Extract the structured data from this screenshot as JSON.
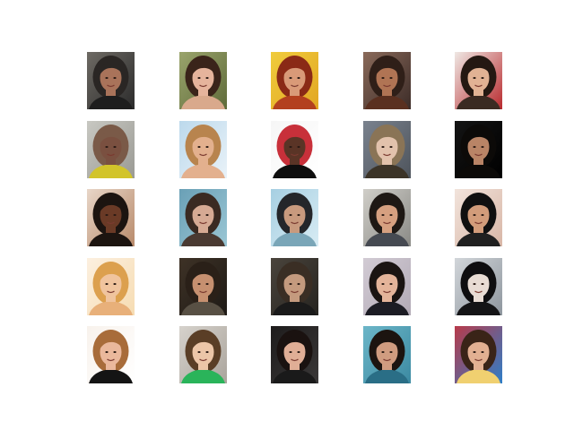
{
  "figure": {
    "background": "#ffffff",
    "rows": 5,
    "cols": 5
  },
  "portraits": [
    {
      "bg": "#6e6a64",
      "bg2": "#2b2b2b",
      "hair": "#2a2624",
      "skin": "#a9735a",
      "shirt": "#1e1e1e"
    },
    {
      "bg": "#9aa46c",
      "bg2": "#5f6b3a",
      "hair": "#3a241a",
      "skin": "#e6b49c",
      "shirt": "#d9a98c"
    },
    {
      "bg": "#f0cc3c",
      "bg2": "#e2a623",
      "hair": "#8a2a16",
      "skin": "#d99a78",
      "shirt": "#b3401f"
    },
    {
      "bg": "#8a6a5a",
      "bg2": "#3c2c28",
      "hair": "#2f1f18",
      "skin": "#b07454",
      "shirt": "#5a3020"
    },
    {
      "bg": "#efe8e4",
      "bg2": "#b82a2e",
      "hair": "#241812",
      "skin": "#e1b294",
      "shirt": "#3a2a22"
    },
    {
      "bg": "#c8c8c2",
      "bg2": "#9a9a94",
      "hair": "#7a5a48",
      "skin": "#7a5040",
      "shirt": "#d2c42a"
    },
    {
      "bg": "#bcd9ec",
      "bg2": "#e9f2f8",
      "hair": "#b8844e",
      "skin": "#e3b08e",
      "shirt": "#e3b08e"
    },
    {
      "bg": "#f6f6f6",
      "bg2": "#ffffff",
      "hair": "#c8303a",
      "skin": "#5a3426",
      "shirt": "#0e0e0e"
    },
    {
      "bg": "#7a828e",
      "bg2": "#4e545c",
      "hair": "#8a7456",
      "skin": "#e2c2ac",
      "shirt": "#3c3428"
    },
    {
      "bg": "#141414",
      "bg2": "#000000",
      "hair": "#0c0a08",
      "skin": "#b98466",
      "shirt": "#0c0a08"
    },
    {
      "bg": "#e8d6c8",
      "bg2": "#b88a6a",
      "hair": "#1c1410",
      "skin": "#6a3a26",
      "shirt": "#1c1410"
    },
    {
      "bg": "#6aa0b6",
      "bg2": "#9ac6d4",
      "hair": "#3a2a22",
      "skin": "#d6aa94",
      "shirt": "#4a3a32"
    },
    {
      "bg": "#a6cfe2",
      "bg2": "#d8ecf4",
      "hair": "#24262a",
      "skin": "#c89a7e",
      "shirt": "#7aa6b8"
    },
    {
      "bg": "#d0cec8",
      "bg2": "#8a8a86",
      "hair": "#1e1814",
      "skin": "#d6a080",
      "shirt": "#464a52"
    },
    {
      "bg": "#f2e4dc",
      "bg2": "#d8b6a6",
      "hair": "#101010",
      "skin": "#d29c7a",
      "shirt": "#202020"
    },
    {
      "bg": "#fcf0e0",
      "bg2": "#f6dcb2",
      "hair": "#dca04e",
      "skin": "#f0c49e",
      "shirt": "#e8b07a"
    },
    {
      "bg": "#3e3226",
      "bg2": "#1e1a16",
      "hair": "#2a2018",
      "skin": "#c69070",
      "shirt": "#585044"
    },
    {
      "bg": "#4a443c",
      "bg2": "#262420",
      "hair": "#3a2e24",
      "skin": "#c49a7e",
      "shirt": "#1a1a1a"
    },
    {
      "bg": "#d2cbd4",
      "bg2": "#b2aab6",
      "hair": "#1a1412",
      "skin": "#e4b49a",
      "shirt": "#1c1c24"
    },
    {
      "bg": "#d2d6da",
      "bg2": "#8e969e",
      "hair": "#0e0e10",
      "skin": "#e8dcd4",
      "shirt": "#141416"
    },
    {
      "bg": "#f8f2ec",
      "bg2": "#ffffff",
      "hair": "#a86c3a",
      "skin": "#eab89c",
      "shirt": "#141414"
    },
    {
      "bg": "#d6d2cc",
      "bg2": "#aaa49c",
      "hair": "#5a3e26",
      "skin": "#ecc6a8",
      "shirt": "#2ab45a"
    },
    {
      "bg": "#1e1c1c",
      "bg2": "#3a3838",
      "hair": "#1a1210",
      "skin": "#e0ae96",
      "shirt": "#1a1a1a"
    },
    {
      "bg": "#6cb6c8",
      "bg2": "#3c8aa2",
      "hair": "#1c1410",
      "skin": "#d09c80",
      "shirt": "#2a6e86"
    },
    {
      "bg": "#b83a4a",
      "bg2": "#2e7ec8",
      "hair": "#3a2418",
      "skin": "#e2b092",
      "shirt": "#f0d070"
    }
  ]
}
